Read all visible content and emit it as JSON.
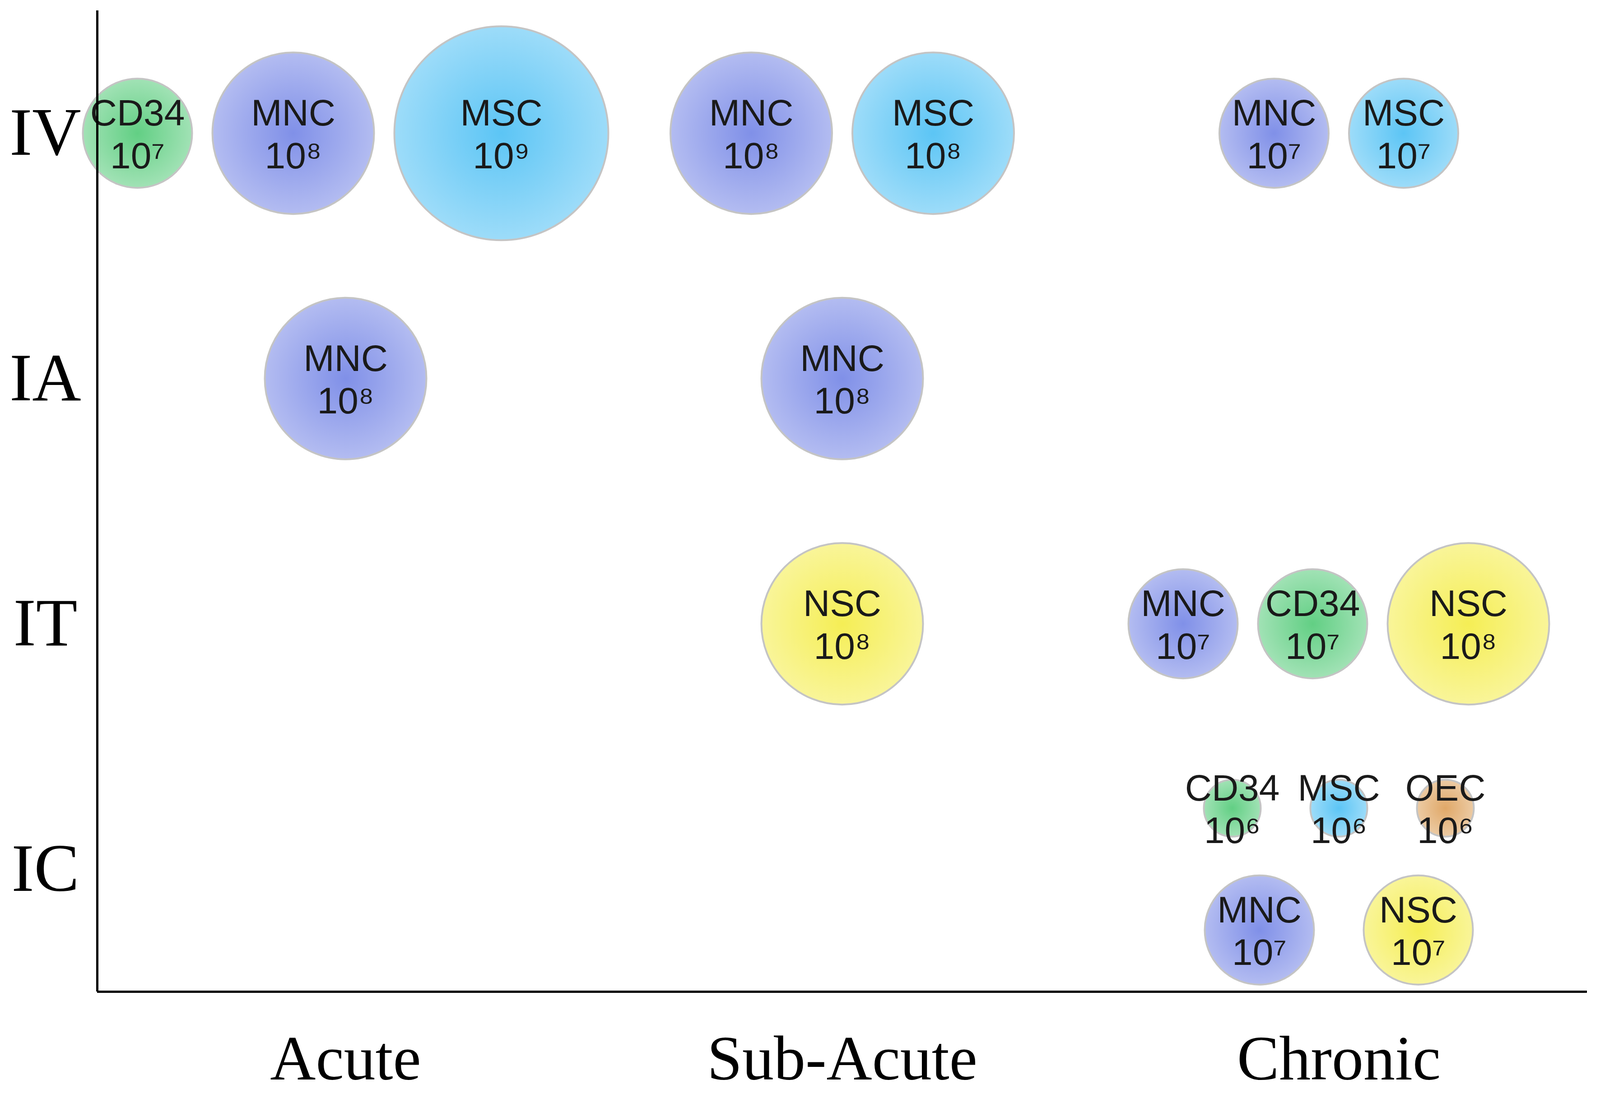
{
  "chart_data": {
    "type": "bubble",
    "categories": [
      "Acute",
      "Sub-Acute",
      "Chronic"
    ],
    "y_categories": [
      "IV",
      "IA",
      "IT",
      "IC"
    ],
    "bubbles": [
      {
        "x": "Acute",
        "y": "IV",
        "label": "CD34",
        "value": 10000000,
        "value_label": "10⁷",
        "color": "#62cf84"
      },
      {
        "x": "Acute",
        "y": "IV",
        "label": "MNC",
        "value": 100000000,
        "value_label": "10⁸",
        "color": "#8090e8"
      },
      {
        "x": "Acute",
        "y": "IV",
        "label": "MSC",
        "value": 1000000000,
        "value_label": "10⁹",
        "color": "#5cc5f5"
      },
      {
        "x": "Sub-Acute",
        "y": "IV",
        "label": "MNC",
        "value": 100000000,
        "value_label": "10⁸",
        "color": "#8090e8"
      },
      {
        "x": "Sub-Acute",
        "y": "IV",
        "label": "MSC",
        "value": 100000000,
        "value_label": "10⁸",
        "color": "#5cc5f5"
      },
      {
        "x": "Chronic",
        "y": "IV",
        "label": "MNC",
        "value": 10000000,
        "value_label": "10⁷",
        "color": "#8090e8"
      },
      {
        "x": "Chronic",
        "y": "IV",
        "label": "MSC",
        "value": 10000000,
        "value_label": "10⁷",
        "color": "#5cc5f5"
      },
      {
        "x": "Acute",
        "y": "IA",
        "label": "MNC",
        "value": 100000000,
        "value_label": "10⁸",
        "color": "#8090e8"
      },
      {
        "x": "Sub-Acute",
        "y": "IA",
        "label": "MNC",
        "value": 100000000,
        "value_label": "10⁸",
        "color": "#8090e8"
      },
      {
        "x": "Sub-Acute",
        "y": "IT",
        "label": "NSC",
        "value": 100000000,
        "value_label": "10⁸",
        "color": "#f5ee55"
      },
      {
        "x": "Chronic",
        "y": "IT",
        "label": "MNC",
        "value": 10000000,
        "value_label": "10⁷",
        "color": "#8090e8"
      },
      {
        "x": "Chronic",
        "y": "IT",
        "label": "CD34",
        "value": 10000000,
        "value_label": "10⁷",
        "color": "#62cf84"
      },
      {
        "x": "Chronic",
        "y": "IT",
        "label": "NSC",
        "value": 100000000,
        "value_label": "10⁸",
        "color": "#f5ee55"
      },
      {
        "x": "Chronic",
        "y": "IC",
        "label": "CD34",
        "value": 1000000,
        "value_label": "10⁶",
        "color": "#62cf84"
      },
      {
        "x": "Chronic",
        "y": "IC",
        "label": "MSC",
        "value": 1000000,
        "value_label": "10⁶",
        "color": "#5cc5f5"
      },
      {
        "x": "Chronic",
        "y": "IC",
        "label": "OEC",
        "value": 1000000,
        "value_label": "10⁶",
        "color": "#e0a868"
      },
      {
        "x": "Chronic",
        "y": "IC",
        "label": "MNC",
        "value": 10000000,
        "value_label": "10⁷",
        "color": "#8090e8"
      },
      {
        "x": "Chronic",
        "y": "IC",
        "label": "NSC",
        "value": 10000000,
        "value_label": "10⁷",
        "color": "#f5ee55"
      }
    ]
  }
}
